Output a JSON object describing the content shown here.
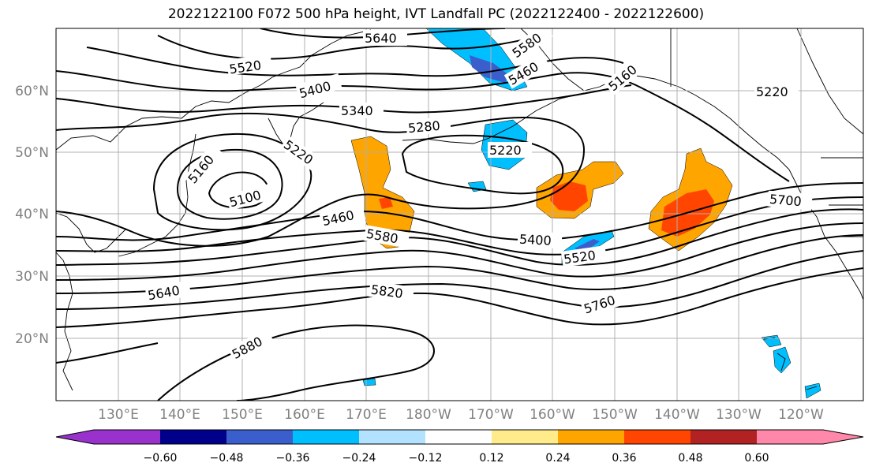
{
  "title": "2022122100 F072 500 hPa height, IVT Landfall PC (2022122400 - 2022122600)",
  "lat_labels": [
    "60°N",
    "50°N",
    "40°N",
    "30°N",
    "20°N"
  ],
  "lon_labels": [
    "130°E",
    "140°E",
    "150°E",
    "160°E",
    "170°E",
    "180°W",
    "170°W",
    "160°W",
    "150°W",
    "140°W",
    "130°W",
    "120°W"
  ],
  "contour_labels": [
    "5640",
    "5520",
    "5400",
    "5340",
    "5280",
    "5220",
    "5160",
    "5100",
    "5460",
    "5580",
    "5400",
    "5520",
    "5640",
    "5820",
    "5880",
    "5760",
    "5700",
    "5220",
    "5220",
    "5460",
    "5580",
    "5160"
  ],
  "colorbar": {
    "ticks": [
      "−0.60",
      "−0.48",
      "−0.36",
      "−0.24",
      "−0.12",
      "0.12",
      "0.24",
      "0.36",
      "0.48",
      "0.60"
    ],
    "colors": [
      "#9932cc",
      "#00008b",
      "#3a5fcd",
      "#00bfff",
      "#b2e2ff",
      "#ffffff",
      "#ffeb8a",
      "#ffa500",
      "#ff4500",
      "#b22222",
      "#ff88aa"
    ]
  },
  "colors": {
    "land_line": "#000000",
    "grid": "#b0b0b0",
    "tick_text": "#808080"
  }
}
